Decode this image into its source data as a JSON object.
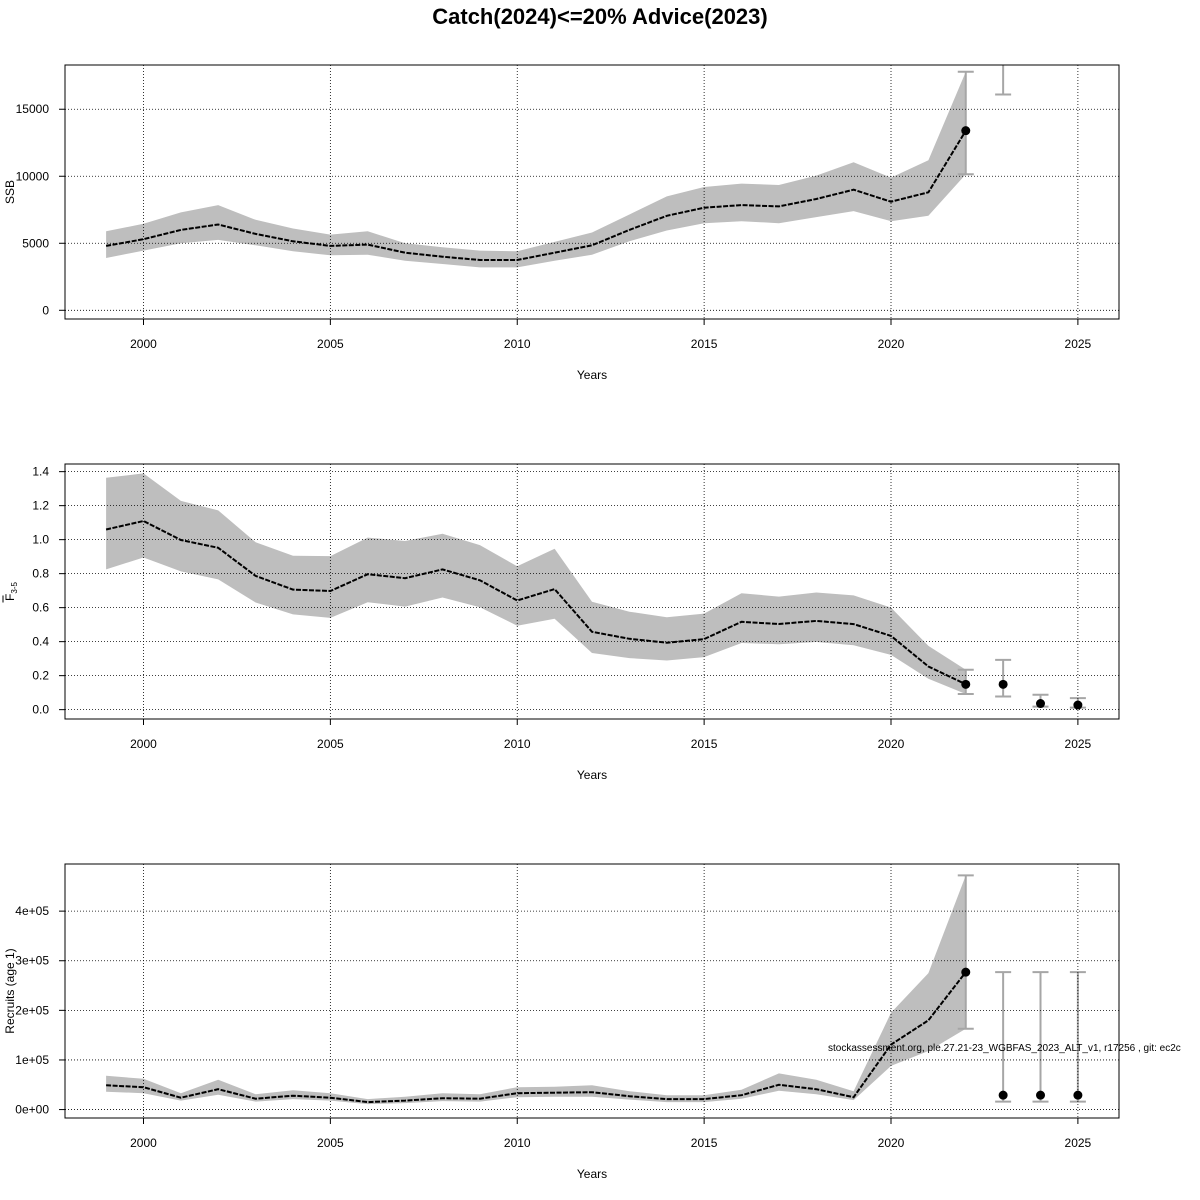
{
  "page": {
    "title": "Catch(2024)<=20% Advice(2023)",
    "footnote": "stockassessment.org, ple.27.21-23_WGBFAS_2023_ALT_v1, r17256 , git: ec2c",
    "colors": {
      "band": "#bebebe",
      "line": "#000000",
      "grid": "#000000",
      "errorbar": "#a6a6a6",
      "point": "#000000"
    }
  },
  "chart_data": [
    {
      "type": "line",
      "ylabel": "SSB",
      "xlabel": "Years",
      "xlim": [
        1997.9,
        2026.1
      ],
      "ylim": [
        -650,
        18300
      ],
      "xticks": [
        2000,
        2005,
        2010,
        2015,
        2020,
        2025
      ],
      "xtick_labels": [
        "2000",
        "2005",
        "2010",
        "2015",
        "2020",
        "2025"
      ],
      "yticks": [
        0,
        5000,
        10000,
        15000
      ],
      "ytick_labels": [
        "0",
        "5000",
        "10000",
        "15000"
      ],
      "grid": true,
      "series": [
        {
          "x": [
            1999,
            2000,
            2001,
            2002,
            2003,
            2004,
            2005,
            2006,
            2007,
            2008,
            2009,
            2010,
            2011,
            2012,
            2013,
            2014,
            2015,
            2016,
            2017,
            2018,
            2019,
            2020,
            2021,
            2022
          ],
          "values": [
            4800,
            5300,
            6000,
            6400,
            5700,
            5150,
            4800,
            4900,
            4300,
            4000,
            3750,
            3750,
            4300,
            4850,
            6000,
            7050,
            7650,
            7850,
            7750,
            8300,
            9000,
            8100,
            8800,
            13400
          ],
          "lower": [
            3900,
            4450,
            5000,
            5250,
            4850,
            4400,
            4100,
            4150,
            3700,
            3450,
            3200,
            3200,
            3700,
            4150,
            5150,
            5950,
            6500,
            6650,
            6500,
            6950,
            7400,
            6650,
            7050,
            10150
          ],
          "upper": [
            5900,
            6450,
            7300,
            7850,
            6750,
            6100,
            5650,
            5900,
            5000,
            4700,
            4450,
            4400,
            5100,
            5800,
            7150,
            8500,
            9200,
            9450,
            9350,
            10050,
            11050,
            9900,
            11200,
            17800
          ]
        }
      ],
      "points": [
        {
          "x": 2022,
          "y": 13400
        }
      ],
      "error_bars": [
        {
          "x": 2022,
          "low": 10150,
          "high": 17800
        },
        {
          "x": 2023,
          "low": 16100,
          "high": 18500
        }
      ]
    },
    {
      "type": "line",
      "ylabel": "F",
      "ylabel_sub": "3-5",
      "xlabel": "Years",
      "xlim": [
        1997.9,
        2026.1
      ],
      "ylim": [
        -0.055,
        1.445
      ],
      "xticks": [
        2000,
        2005,
        2010,
        2015,
        2020,
        2025
      ],
      "xtick_labels": [
        "2000",
        "2005",
        "2010",
        "2015",
        "2020",
        "2025"
      ],
      "yticks": [
        0,
        0.2,
        0.4,
        0.6,
        0.8,
        1.0,
        1.2,
        1.4
      ],
      "ytick_labels": [
        "0.0",
        "0.2",
        "0.4",
        "0.6",
        "0.8",
        "1.0",
        "1.2",
        "1.4"
      ],
      "grid": true,
      "series": [
        {
          "x": [
            1999,
            2000,
            2001,
            2002,
            2003,
            2004,
            2005,
            2006,
            2007,
            2008,
            2009,
            2010,
            2011,
            2012,
            2013,
            2014,
            2015,
            2016,
            2017,
            2018,
            2019,
            2020,
            2021,
            2022
          ],
          "values": [
            1.06,
            1.11,
            0.998,
            0.952,
            0.787,
            0.706,
            0.698,
            0.797,
            0.773,
            0.825,
            0.761,
            0.642,
            0.709,
            0.458,
            0.417,
            0.394,
            0.415,
            0.517,
            0.504,
            0.522,
            0.503,
            0.434,
            0.254,
            0.149
          ],
          "lower": [
            0.825,
            0.895,
            0.813,
            0.766,
            0.63,
            0.56,
            0.54,
            0.632,
            0.606,
            0.66,
            0.602,
            0.494,
            0.535,
            0.333,
            0.303,
            0.289,
            0.309,
            0.392,
            0.385,
            0.398,
            0.379,
            0.322,
            0.182,
            0.092
          ],
          "upper": [
            1.364,
            1.39,
            1.228,
            1.172,
            0.985,
            0.905,
            0.903,
            1.012,
            0.992,
            1.035,
            0.968,
            0.843,
            0.946,
            0.635,
            0.576,
            0.544,
            0.565,
            0.685,
            0.665,
            0.689,
            0.672,
            0.6,
            0.375,
            0.235
          ]
        }
      ],
      "points": [
        {
          "x": 2022,
          "y": 0.149
        },
        {
          "x": 2023,
          "y": 0.149
        },
        {
          "x": 2024,
          "y": 0.036
        },
        {
          "x": 2025,
          "y": 0.027
        }
      ],
      "error_bars": [
        {
          "x": 2022,
          "low": 0.092,
          "high": 0.235
        },
        {
          "x": 2023,
          "low": 0.077,
          "high": 0.293
        },
        {
          "x": 2024,
          "low": 0.018,
          "high": 0.088
        },
        {
          "x": 2025,
          "low": 0.012,
          "high": 0.068
        }
      ]
    },
    {
      "type": "line",
      "ylabel": "Recruits (age 1)",
      "xlabel": "Years",
      "xlim": [
        1997.9,
        2026.1
      ],
      "ylim": [
        -17000,
        495000
      ],
      "xticks": [
        2000,
        2005,
        2010,
        2015,
        2020,
        2025
      ],
      "xtick_labels": [
        "2000",
        "2005",
        "2010",
        "2015",
        "2020",
        "2025"
      ],
      "yticks": [
        0,
        100000,
        200000,
        300000,
        400000
      ],
      "ytick_labels": [
        "0e+00",
        "1e+05",
        "2e+05",
        "3e+05",
        "4e+05"
      ],
      "grid": true,
      "series": [
        {
          "x": [
            1999,
            2000,
            2001,
            2002,
            2003,
            2004,
            2005,
            2006,
            2007,
            2008,
            2009,
            2010,
            2011,
            2012,
            2013,
            2014,
            2015,
            2016,
            2017,
            2018,
            2019,
            2020,
            2021,
            2022
          ],
          "values": [
            49000,
            45000,
            24000,
            41000,
            22000,
            28000,
            24000,
            15000,
            18000,
            23000,
            22000,
            33000,
            34000,
            35000,
            27000,
            21000,
            21000,
            29000,
            50000,
            41000,
            25000,
            131000,
            180000,
            277000
          ],
          "lower": [
            36000,
            33000,
            18000,
            30000,
            16000,
            21000,
            18000,
            11000,
            13000,
            17000,
            16000,
            25000,
            26000,
            26000,
            20000,
            15000,
            15000,
            22000,
            38000,
            31000,
            19000,
            88000,
            118000,
            163000
          ],
          "upper": [
            68000,
            62000,
            33000,
            60000,
            31000,
            39000,
            33000,
            21000,
            26000,
            33000,
            31000,
            45000,
            46000,
            49000,
            37000,
            29000,
            29000,
            40000,
            73000,
            60000,
            37000,
            195000,
            275000,
            472000
          ]
        }
      ],
      "points": [
        {
          "x": 2022,
          "y": 277000
        },
        {
          "x": 2023,
          "y": 29000
        },
        {
          "x": 2024,
          "y": 29000
        },
        {
          "x": 2025,
          "y": 29000
        }
      ],
      "error_bars": [
        {
          "x": 2022,
          "low": 163000,
          "high": 472000
        },
        {
          "x": 2023,
          "low": 16000,
          "high": 277000
        },
        {
          "x": 2024,
          "low": 16000,
          "high": 277000
        },
        {
          "x": 2025,
          "low": 16000,
          "high": 277000
        }
      ]
    }
  ]
}
